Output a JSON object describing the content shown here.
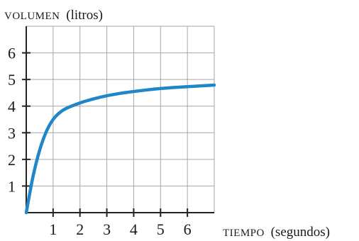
{
  "chart_data": {
    "type": "line",
    "title": "",
    "ylabel_prefix": "VOLUMEN",
    "ylabel_suffix": "(litros)",
    "xlabel_prefix": "TIEMPO",
    "xlabel_suffix": "(segundos)",
    "xlim": [
      0,
      7
    ],
    "ylim": [
      0,
      7
    ],
    "x_ticks": [
      1,
      2,
      3,
      4,
      5,
      6
    ],
    "x_tick_labels": [
      "1",
      "2",
      "3",
      "4",
      "5",
      "6"
    ],
    "y_ticks": [
      1,
      2,
      3,
      4,
      5,
      6
    ],
    "y_tick_labels": [
      "1",
      "2",
      "3",
      "4",
      "5",
      "6"
    ],
    "grid": true,
    "series": [
      {
        "color": "#1f86c8",
        "x": [
          0,
          0.25,
          0.5,
          0.75,
          1.0,
          1.25,
          1.5,
          2.0,
          2.5,
          3.0,
          3.5,
          4.0,
          4.5,
          5.0,
          5.5,
          6.0,
          6.5,
          7.0
        ],
        "y": [
          0,
          1.35,
          2.35,
          3.05,
          3.5,
          3.76,
          3.92,
          4.12,
          4.27,
          4.39,
          4.48,
          4.55,
          4.61,
          4.66,
          4.7,
          4.73,
          4.76,
          4.79
        ]
      }
    ]
  }
}
